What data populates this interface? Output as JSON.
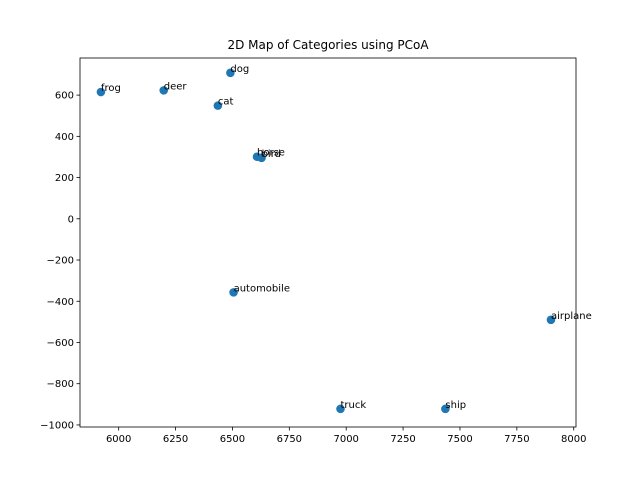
{
  "chart_data": {
    "type": "scatter",
    "title": "2D Map of Categories using PCoA",
    "xlabel": "",
    "ylabel": "",
    "xlim": [
      5830,
      8010
    ],
    "ylim": [
      -1010,
      780
    ],
    "x_ticks": [
      6000,
      6250,
      6500,
      6750,
      7000,
      7250,
      7500,
      7750,
      8000
    ],
    "y_ticks": [
      -1000,
      -800,
      -600,
      -400,
      -200,
      0,
      200,
      400,
      600
    ],
    "grid": false,
    "marker_color": "#1f77b4",
    "points": [
      {
        "label": "frog",
        "x": 5922,
        "y": 615
      },
      {
        "label": "deer",
        "x": 6198,
        "y": 623
      },
      {
        "label": "dog",
        "x": 6491,
        "y": 708
      },
      {
        "label": "cat",
        "x": 6436,
        "y": 549
      },
      {
        "label": "horse",
        "x": 6608,
        "y": 301
      },
      {
        "label": "bird",
        "x": 6628,
        "y": 296
      },
      {
        "label": "automobile",
        "x": 6505,
        "y": -357
      },
      {
        "label": "airplane",
        "x": 7900,
        "y": -490
      },
      {
        "label": "truck",
        "x": 6975,
        "y": -922
      },
      {
        "label": "ship",
        "x": 7436,
        "y": -922
      }
    ]
  }
}
